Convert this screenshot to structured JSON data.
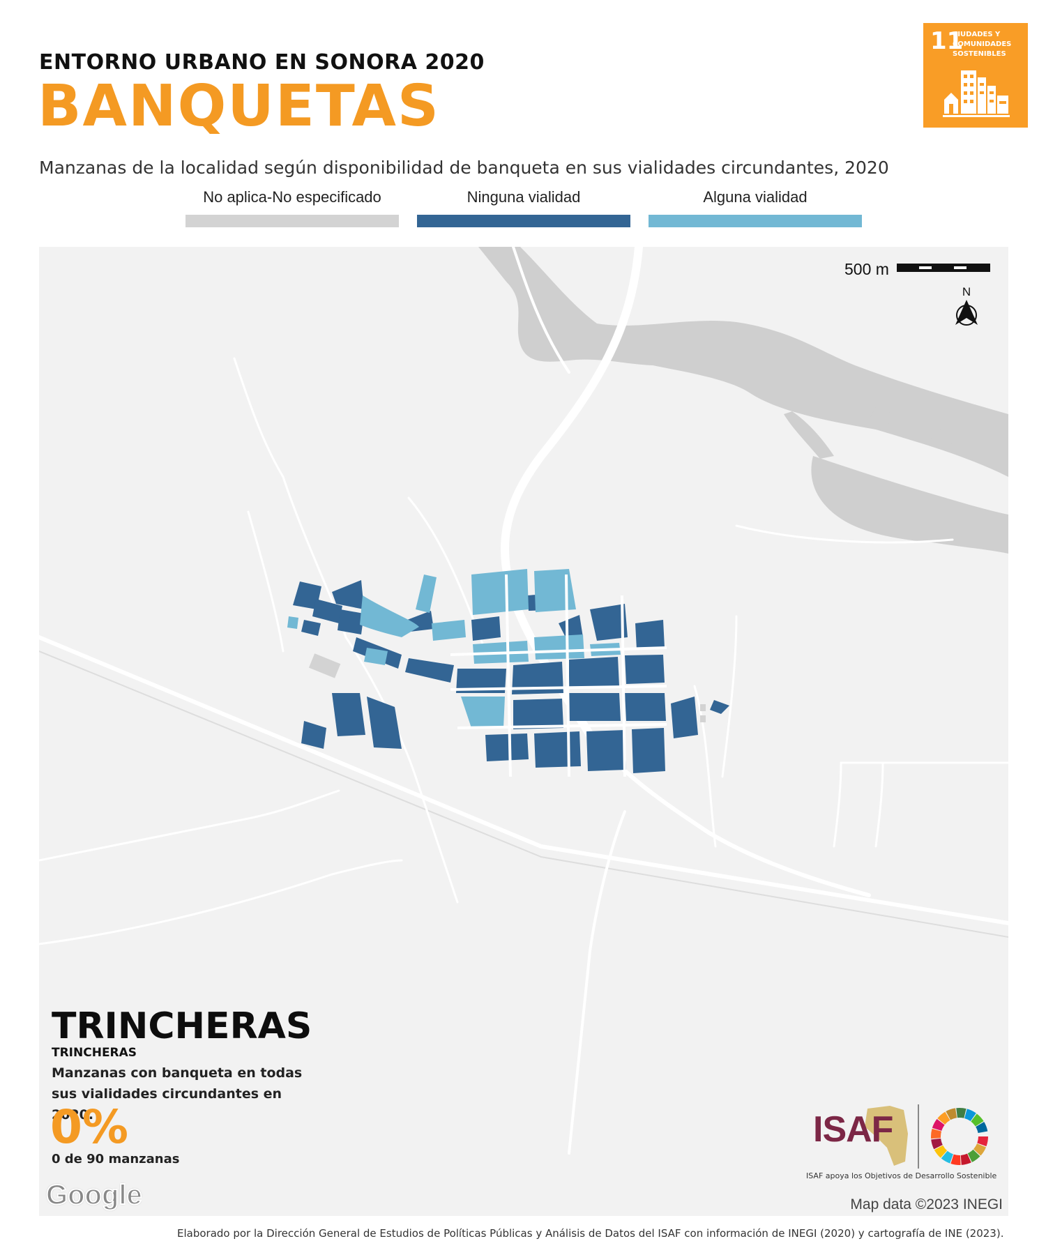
{
  "header": {
    "kicker": "ENTORNO URBANO EN SONORA 2020",
    "title": "BANQUETAS",
    "subtitle": "Manzanas de la localidad según disponibilidad de banqueta en sus vialidades circundantes, 2020"
  },
  "sdg_badge": {
    "number": "11",
    "text": "CIUDADES Y COMUNIDADES SOSTENIBLES",
    "color": "#f99d26"
  },
  "legend": [
    {
      "label": "No aplica-No especificado",
      "color": "#d3d3d3"
    },
    {
      "label": "Ninguna vialidad",
      "color": "#336594"
    },
    {
      "label": "Alguna vialidad",
      "color": "#72b8d4"
    }
  ],
  "map": {
    "scale_label": "500 m",
    "north_label": "N",
    "attribution": "Map data ©2023 INEGI",
    "google_label": "Google",
    "colors": {
      "background": "#f2f2f2",
      "river": "#cfcfcf",
      "road": "#ffffff"
    }
  },
  "locality": {
    "name": "TRINCHERAS",
    "subname": "TRINCHERAS",
    "description": "Manzanas con banqueta en todas sus vialidades circundantes en 2020.",
    "percent": "0%",
    "count": "0 de 90 manzanas"
  },
  "logos": {
    "isaf": "ISAF",
    "tagline": "ISAF apoya los Objetivos de Desarrollo Sostenible"
  },
  "footer": {
    "credit": "Elaborado por la Dirección General de Estudios de Políticas Públicas y Análisis de Datos del ISAF con información de INEGI (2020) y cartografía de INE (2023)."
  }
}
